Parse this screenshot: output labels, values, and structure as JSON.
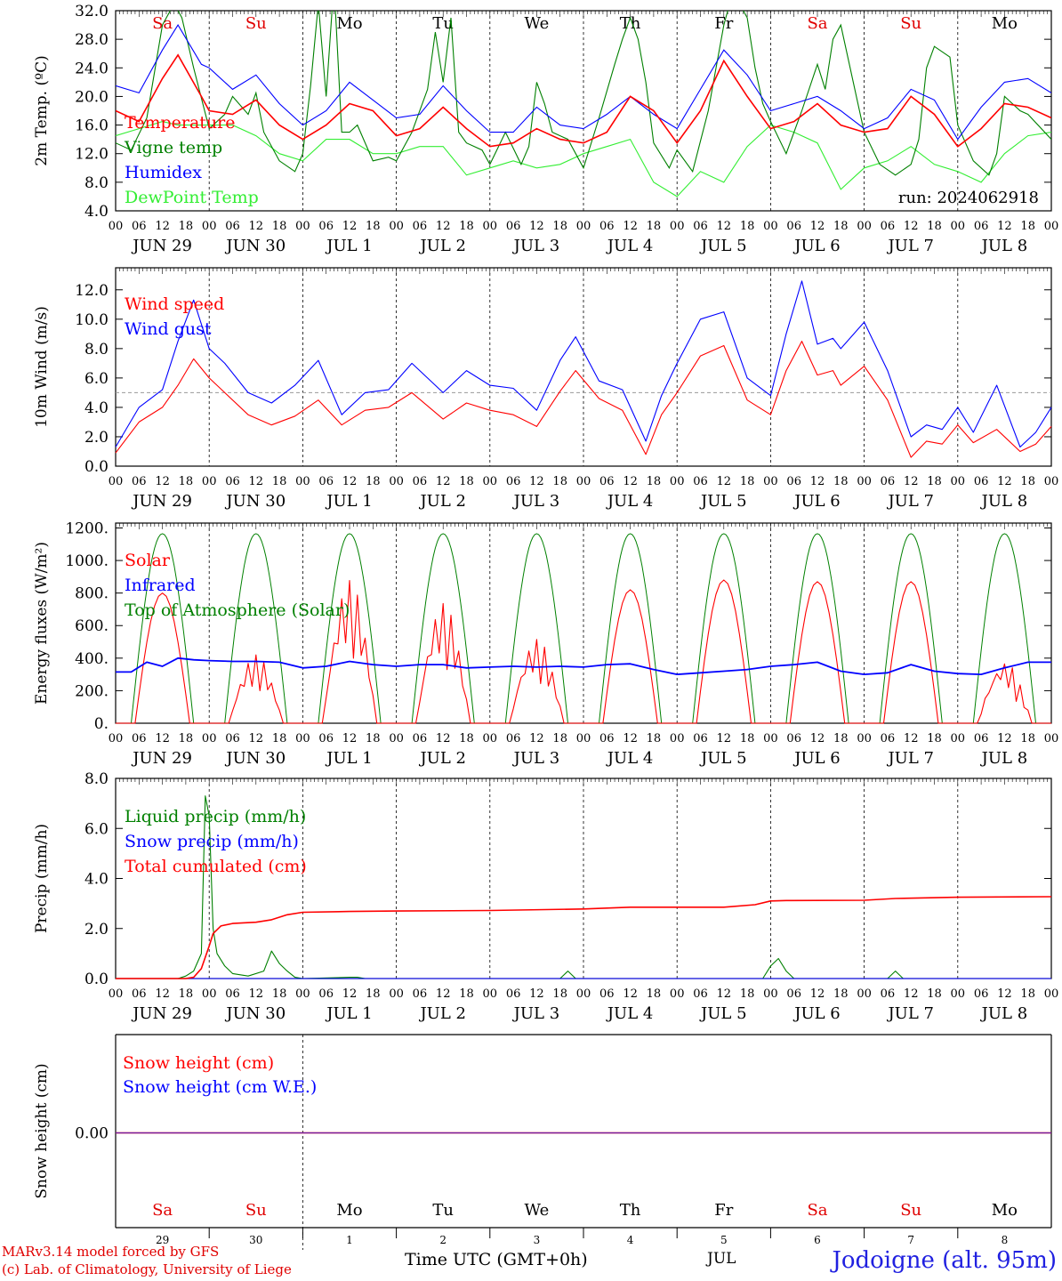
{
  "chart_data": [
    {
      "id": "temp",
      "type": "line",
      "ylabel": "2m Temp. (ºC)",
      "ylim": [
        4,
        32
      ],
      "yticks": [
        "4.0",
        "8.0",
        "12.0",
        "16.0",
        "20.0",
        "24.0",
        "28.0",
        "32.0"
      ],
      "annotation": "run: 2024062918",
      "series": [
        {
          "name": "Temperature",
          "color": "#ff0000",
          "x": [
            0,
            6,
            12,
            16,
            22,
            24,
            30,
            36,
            42,
            48,
            54,
            60,
            66,
            72,
            78,
            84,
            90,
            96,
            102,
            108,
            114,
            120,
            126,
            132,
            138,
            144,
            150,
            156,
            162,
            168,
            174,
            180,
            186,
            192,
            198,
            204,
            210,
            216,
            222,
            228,
            234,
            240
          ],
          "y": [
            18.0,
            16.5,
            22.5,
            25.8,
            20.0,
            18.0,
            17.5,
            19.5,
            16.0,
            14.0,
            16.0,
            19.0,
            18.0,
            14.5,
            15.5,
            18.5,
            15.5,
            13.0,
            13.5,
            15.5,
            14.0,
            13.5,
            15.0,
            20.0,
            18.0,
            13.5,
            18.0,
            25.0,
            20.0,
            15.5,
            16.5,
            19.0,
            16.0,
            15.0,
            15.5,
            20.0,
            17.5,
            13.0,
            15.5,
            19.0,
            18.5,
            17.0
          ]
        },
        {
          "name": "Vigne temp",
          "color": "#008000",
          "x": [
            0,
            4,
            8,
            12,
            15,
            17,
            20,
            24,
            28,
            30,
            34,
            36,
            38,
            42,
            46,
            48,
            50,
            52,
            54,
            56,
            58,
            60,
            62,
            66,
            70,
            72,
            76,
            80,
            82,
            84,
            86,
            88,
            90,
            94,
            96,
            100,
            104,
            106,
            108,
            110,
            112,
            116,
            120,
            124,
            128,
            130,
            132,
            134,
            136,
            138,
            142,
            144,
            148,
            152,
            156,
            158,
            160,
            162,
            164,
            166,
            168,
            172,
            176,
            180,
            182,
            184,
            186,
            190,
            192,
            196,
            200,
            204,
            206,
            208,
            210,
            214,
            216,
            220,
            224,
            226,
            228,
            232,
            234,
            240
          ],
          "y": [
            13.5,
            12.5,
            17.0,
            30.0,
            33.0,
            31.0,
            24.0,
            15.5,
            17.5,
            20.0,
            17.5,
            20.5,
            15.0,
            11.0,
            9.5,
            12.0,
            21.5,
            33.0,
            20.0,
            36.0,
            15.0,
            15.0,
            16.0,
            11.0,
            11.5,
            11.0,
            15.0,
            21.0,
            29.0,
            22.0,
            31.0,
            15.0,
            13.5,
            12.5,
            10.5,
            15.0,
            10.5,
            13.0,
            22.0,
            19.0,
            15.0,
            14.0,
            10.0,
            17.0,
            24.5,
            28.0,
            31.0,
            28.0,
            22.0,
            13.5,
            10.0,
            12.5,
            9.5,
            18.0,
            30.0,
            34.0,
            33.0,
            31.0,
            24.0,
            19.0,
            16.5,
            12.0,
            18.0,
            24.5,
            21.0,
            28.0,
            30.0,
            20.0,
            15.0,
            10.5,
            9.0,
            10.5,
            14.0,
            24.0,
            27.0,
            25.5,
            16.0,
            11.0,
            9.0,
            12.0,
            20.0,
            18.0,
            17.5,
            14.0
          ]
        },
        {
          "name": "Humidex",
          "color": "#0000ff",
          "x": [
            0,
            6,
            12,
            16,
            22,
            24,
            30,
            36,
            42,
            48,
            54,
            60,
            66,
            72,
            78,
            84,
            90,
            96,
            102,
            108,
            114,
            120,
            126,
            132,
            138,
            144,
            150,
            156,
            162,
            168,
            174,
            180,
            186,
            192,
            198,
            204,
            210,
            216,
            222,
            228,
            234,
            240
          ],
          "y": [
            21.5,
            20.5,
            26.5,
            30.0,
            24.5,
            24.0,
            21.0,
            23.0,
            19.0,
            16.0,
            18.0,
            22.0,
            19.5,
            17.0,
            17.5,
            21.5,
            18.0,
            15.0,
            15.0,
            18.5,
            16.0,
            15.5,
            17.5,
            20.0,
            17.5,
            15.5,
            21.0,
            26.5,
            23.0,
            18.0,
            19.0,
            20.0,
            18.0,
            15.5,
            17.0,
            21.0,
            19.5,
            14.0,
            18.5,
            22.0,
            22.5,
            20.5
          ]
        },
        {
          "name": "DewPoint Temp",
          "color": "#33ee33",
          "x": [
            0,
            6,
            12,
            16,
            22,
            24,
            30,
            36,
            42,
            48,
            54,
            60,
            66,
            72,
            78,
            84,
            90,
            96,
            102,
            108,
            114,
            120,
            126,
            132,
            138,
            144,
            150,
            156,
            162,
            168,
            174,
            180,
            186,
            192,
            198,
            204,
            210,
            216,
            222,
            228,
            234,
            240
          ],
          "y": [
            14.5,
            15.5,
            16.5,
            16.0,
            16.0,
            16.0,
            16.0,
            14.5,
            12.0,
            11.0,
            14.0,
            14.0,
            12.0,
            12.0,
            13.0,
            13.0,
            9.0,
            10.0,
            11.0,
            10.0,
            10.5,
            12.0,
            13.0,
            14.0,
            8.0,
            6.0,
            9.5,
            8.0,
            13.0,
            16.0,
            15.0,
            13.5,
            7.0,
            10.0,
            11.0,
            13.0,
            10.5,
            9.5,
            8.0,
            12.0,
            14.5,
            15.0
          ]
        }
      ]
    },
    {
      "id": "wind",
      "type": "line",
      "ylabel": "10m Wind (m/s)",
      "ylim": [
        0,
        13.5
      ],
      "yticks": [
        "0.0",
        "2.0",
        "4.0",
        "6.0",
        "8.0",
        "10.0",
        "12.0"
      ],
      "refline": 5,
      "series": [
        {
          "name": "Wind speed",
          "color": "#ff0000",
          "x": [
            0,
            6,
            12,
            16,
            20,
            24,
            28,
            34,
            40,
            46,
            52,
            58,
            64,
            70,
            76,
            84,
            90,
            96,
            102,
            108,
            114,
            118,
            124,
            130,
            136,
            140,
            144,
            150,
            156,
            162,
            168,
            172,
            176,
            180,
            184,
            186,
            192,
            198,
            204,
            208,
            212,
            216,
            220,
            226,
            232,
            236,
            240
          ],
          "y": [
            0.9,
            3.0,
            4.0,
            5.5,
            7.3,
            6.0,
            5.0,
            3.5,
            2.8,
            3.4,
            4.5,
            2.8,
            3.8,
            4.0,
            5.0,
            3.2,
            4.3,
            3.8,
            3.5,
            2.7,
            5.1,
            6.5,
            4.6,
            3.8,
            0.8,
            3.5,
            5.0,
            7.5,
            8.2,
            4.5,
            3.5,
            6.5,
            8.5,
            6.2,
            6.5,
            5.5,
            6.8,
            4.5,
            0.6,
            1.7,
            1.5,
            2.8,
            1.6,
            2.5,
            1.0,
            1.5,
            2.7
          ]
        },
        {
          "name": "Wind gust",
          "color": "#0000ff",
          "x": [
            0,
            6,
            12,
            16,
            20,
            24,
            28,
            34,
            40,
            46,
            52,
            58,
            64,
            70,
            76,
            84,
            90,
            96,
            102,
            108,
            114,
            118,
            124,
            130,
            136,
            140,
            144,
            150,
            156,
            162,
            168,
            172,
            176,
            180,
            184,
            186,
            192,
            198,
            204,
            208,
            212,
            216,
            220,
            226,
            232,
            236,
            240
          ],
          "y": [
            1.3,
            4.0,
            5.2,
            8.5,
            11.3,
            8.0,
            7.0,
            5.0,
            4.3,
            5.5,
            7.2,
            3.5,
            5.0,
            5.2,
            7.0,
            5.0,
            6.5,
            5.5,
            5.3,
            3.8,
            7.2,
            8.8,
            5.8,
            5.2,
            1.7,
            4.8,
            7.0,
            10.0,
            10.5,
            6.0,
            4.8,
            9.0,
            12.6,
            8.3,
            8.7,
            8.0,
            9.8,
            6.5,
            2.0,
            2.8,
            2.5,
            4.0,
            2.3,
            5.5,
            1.3,
            2.3,
            4.0
          ]
        }
      ]
    },
    {
      "id": "energy",
      "type": "line",
      "ylabel": "Energy fluxes (W/m²)",
      "ylim": [
        0,
        1230
      ],
      "yticks": [
        "0.",
        "200.",
        "400.",
        "600.",
        "800.",
        "1000.",
        "1200."
      ],
      "series": [
        {
          "name": "Solar",
          "color": "#ff0000",
          "peaks": [
            800,
            420,
            880,
            740,
            520,
            820,
            880,
            870,
            870,
            380
          ]
        },
        {
          "name": "Infrared",
          "color": "#0000ff",
          "x": [
            0,
            4,
            8,
            12,
            16,
            20,
            24,
            30,
            36,
            42,
            48,
            54,
            60,
            66,
            72,
            78,
            84,
            90,
            96,
            102,
            108,
            114,
            120,
            126,
            132,
            138,
            144,
            150,
            156,
            162,
            168,
            174,
            180,
            186,
            192,
            198,
            204,
            210,
            216,
            222,
            228,
            234,
            240
          ],
          "y": [
            315,
            315,
            375,
            350,
            400,
            390,
            385,
            380,
            380,
            375,
            340,
            350,
            380,
            360,
            350,
            360,
            360,
            340,
            345,
            350,
            345,
            350,
            345,
            360,
            365,
            330,
            300,
            310,
            320,
            330,
            350,
            360,
            375,
            320,
            300,
            310,
            360,
            320,
            305,
            300,
            340,
            375,
            375
          ]
        },
        {
          "name": "Top of Atmosphere (Solar)",
          "color": "#008000",
          "peak": 1165
        }
      ]
    },
    {
      "id": "precip",
      "type": "line",
      "ylabel": "Precip (mm/h)",
      "ylim": [
        0,
        8
      ],
      "yticks": [
        "0.0",
        "2.0",
        "4.0",
        "6.0",
        "8.0"
      ],
      "series": [
        {
          "name": "Liquid precip (mm/h)",
          "color": "#008000",
          "x": [
            0,
            16,
            18,
            20,
            22,
            23,
            24,
            25,
            26,
            28,
            30,
            34,
            38,
            40,
            42,
            44,
            46,
            48,
            60,
            62,
            64,
            90,
            114,
            116,
            118,
            166,
            168,
            170,
            172,
            174,
            198,
            200,
            202,
            240
          ],
          "y": [
            0,
            0,
            0.1,
            0.3,
            1.0,
            7.3,
            6.5,
            2.0,
            1.0,
            0.5,
            0.2,
            0.1,
            0.3,
            1.1,
            0.6,
            0.3,
            0.05,
            0,
            0.05,
            0.05,
            0,
            0,
            0,
            0.3,
            0,
            0,
            0.5,
            0.8,
            0.3,
            0,
            0,
            0.3,
            0,
            0
          ]
        },
        {
          "name": "Snow precip (mm/h)",
          "color": "#0000ff",
          "x": [
            0,
            240
          ],
          "y": [
            0,
            0
          ]
        },
        {
          "name": "Total cumulated (cm)",
          "color": "#ff0000",
          "x": [
            0,
            18,
            20,
            22,
            24,
            25,
            27,
            30,
            36,
            40,
            44,
            48,
            60,
            72,
            96,
            120,
            132,
            144,
            156,
            164,
            168,
            172,
            192,
            200,
            216,
            240
          ],
          "y": [
            0,
            0,
            0.05,
            0.4,
            1.3,
            1.8,
            2.1,
            2.2,
            2.25,
            2.35,
            2.55,
            2.65,
            2.68,
            2.7,
            2.72,
            2.78,
            2.85,
            2.85,
            2.85,
            2.95,
            3.1,
            3.12,
            3.13,
            3.2,
            3.25,
            3.27
          ]
        }
      ]
    },
    {
      "id": "snow",
      "type": "line",
      "ylabel": "Snow height (cm)",
      "ytick": "0.00",
      "series": [
        {
          "name": "Snow height (cm)",
          "color": "#ff0000",
          "x": [
            0,
            240
          ],
          "y": [
            0,
            0
          ]
        },
        {
          "name": "Snow height (cm W.E.)",
          "color": "#0000ff",
          "x": [
            0,
            240
          ],
          "y": [
            0,
            0
          ]
        }
      ]
    }
  ],
  "time_axis": {
    "hour_labels": [
      "00",
      "06",
      "12",
      "18"
    ],
    "date_labels": [
      "JUN 29",
      "JUN 30",
      "JUL  1",
      "JUL  2",
      "JUL  3",
      "JUL  4",
      "JUL  5",
      "JUL  6",
      "JUL  7",
      "JUL  8"
    ],
    "days": [
      "Sa",
      "Su",
      "Mo",
      "Tu",
      "We",
      "Th",
      "Fr",
      "Sa",
      "Su",
      "Mo"
    ],
    "weekend_days": [
      0,
      1,
      7,
      8
    ],
    "day_numbers": [
      "29",
      "30",
      "1",
      "2",
      "3",
      "4",
      "5",
      "6",
      "7",
      "8"
    ],
    "month_label": "JUL",
    "xlabel": "Time UTC (GMT+0h)"
  },
  "footer": {
    "credit1": "MARv3.14 model forced by GFS",
    "credit2": "(c) Lab. of Climatology, University of Liege",
    "station": "Jodoigne (alt. 95m)"
  }
}
